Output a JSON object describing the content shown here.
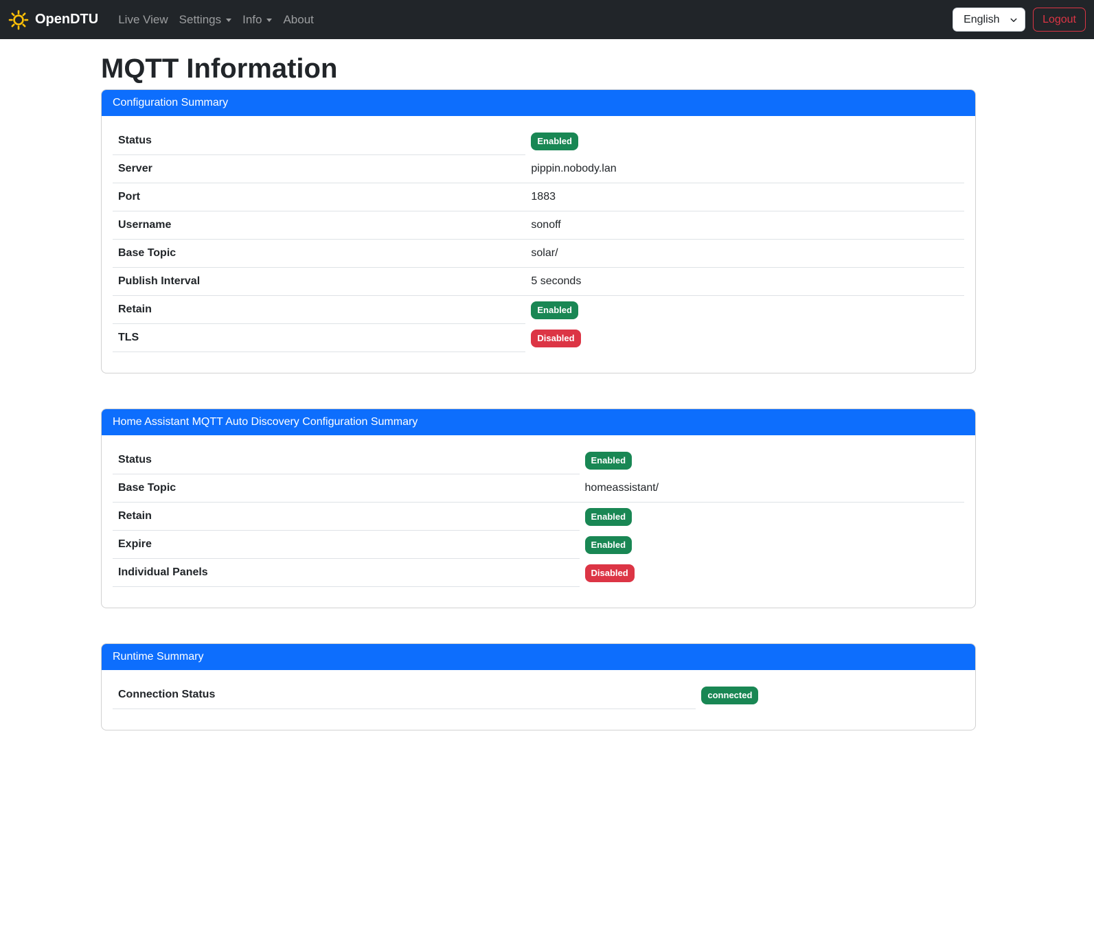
{
  "navbar": {
    "brand": "OpenDTU",
    "items": [
      {
        "label": "Live View",
        "has_caret": false
      },
      {
        "label": "Settings",
        "has_caret": true
      },
      {
        "label": "Info",
        "has_caret": true
      },
      {
        "label": "About",
        "has_caret": false
      }
    ],
    "language_selector": {
      "selected": "English"
    },
    "logout_label": "Logout"
  },
  "page": {
    "title": "MQTT Information"
  },
  "cards": [
    {
      "title": "Configuration Summary",
      "rows": [
        {
          "label": "Status",
          "type": "badge",
          "value": "Enabled",
          "variant": "success"
        },
        {
          "label": "Server",
          "type": "text",
          "value": "pippin.nobody.lan"
        },
        {
          "label": "Port",
          "type": "text",
          "value": "1883"
        },
        {
          "label": "Username",
          "type": "text",
          "value": "sonoff"
        },
        {
          "label": "Base Topic",
          "type": "text",
          "value": "solar/"
        },
        {
          "label": "Publish Interval",
          "type": "text",
          "value": "5 seconds"
        },
        {
          "label": "Retain",
          "type": "badge",
          "value": "Enabled",
          "variant": "success"
        },
        {
          "label": "TLS",
          "type": "badge",
          "value": "Disabled",
          "variant": "danger"
        }
      ]
    },
    {
      "title": "Home Assistant MQTT Auto Discovery Configuration Summary",
      "rows": [
        {
          "label": "Status",
          "type": "badge",
          "value": "Enabled",
          "variant": "success"
        },
        {
          "label": "Base Topic",
          "type": "text",
          "value": "homeassistant/"
        },
        {
          "label": "Retain",
          "type": "badge",
          "value": "Enabled",
          "variant": "success"
        },
        {
          "label": "Expire",
          "type": "badge",
          "value": "Enabled",
          "variant": "success"
        },
        {
          "label": "Individual Panels",
          "type": "badge",
          "value": "Disabled",
          "variant": "danger"
        }
      ]
    },
    {
      "title": "Runtime Summary",
      "rows": [
        {
          "label": "Connection Status",
          "type": "badge",
          "value": "connected",
          "variant": "success"
        }
      ]
    }
  ],
  "colors": {
    "primary": "#0d6efd",
    "success": "#198754",
    "danger": "#dc3545",
    "navbar_bg": "#212529",
    "row_border": "#dee2e6",
    "sun_icon": "#ffc107"
  }
}
